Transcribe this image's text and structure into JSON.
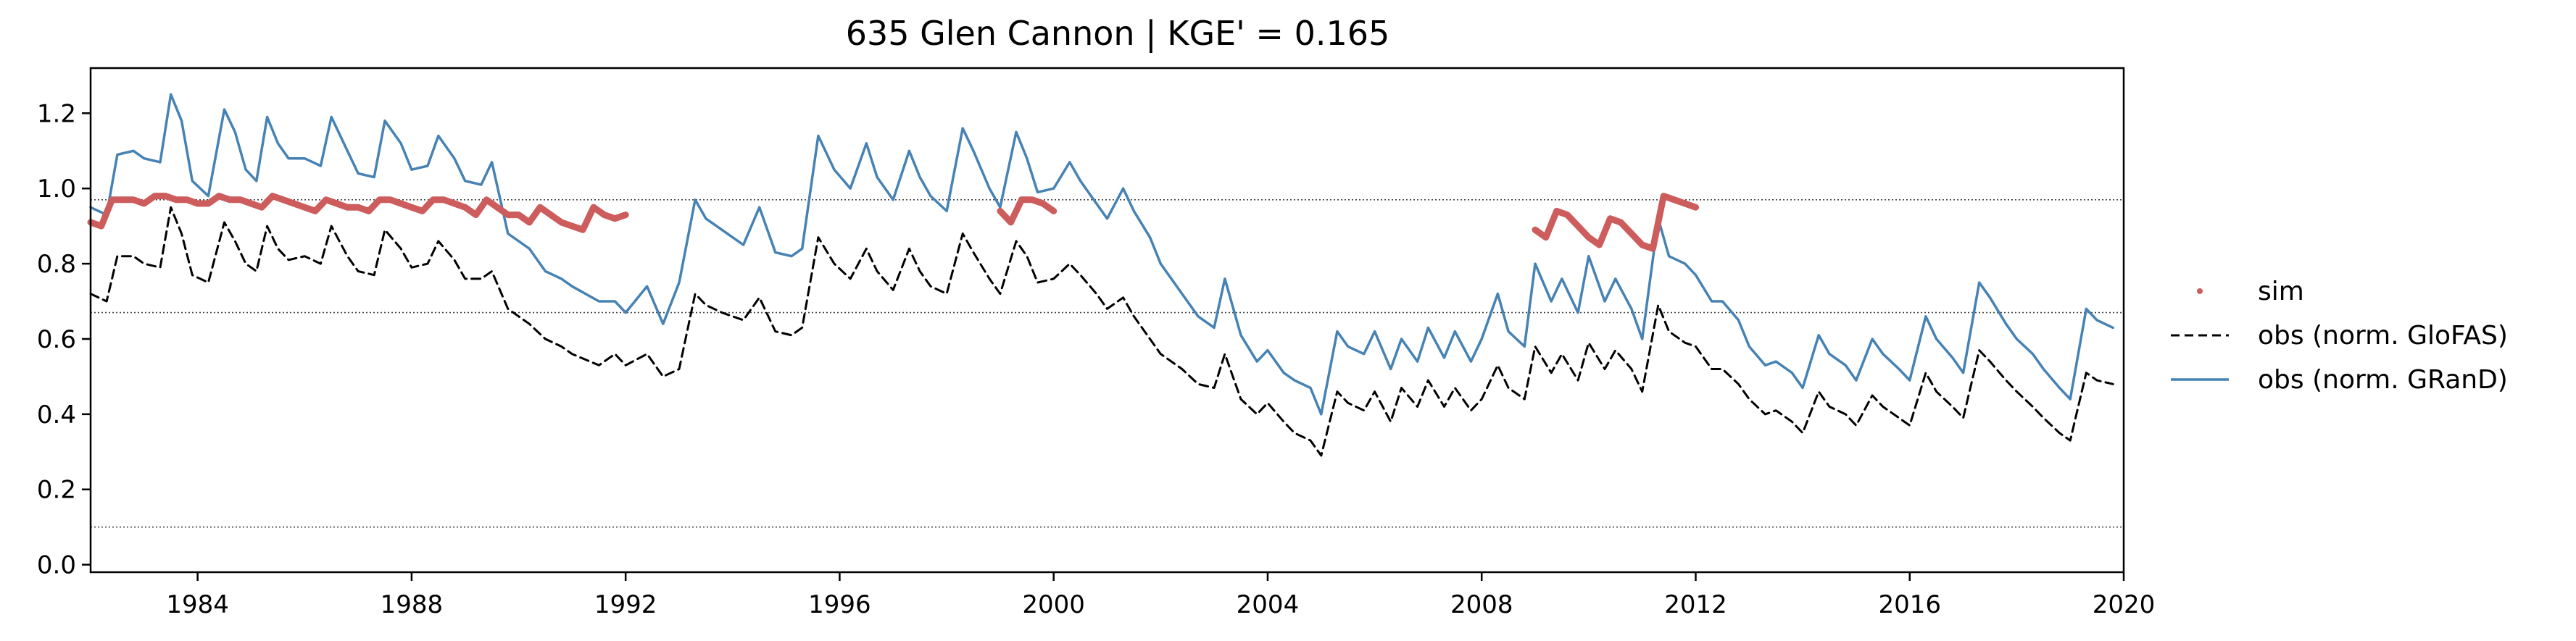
{
  "chart_data": {
    "type": "line",
    "title": "635  Glen Cannon | KGE' = 0.165",
    "xlabel": "",
    "ylabel": "",
    "xlim": [
      1982.0,
      2020.0
    ],
    "ylim": [
      -0.02,
      1.32
    ],
    "x_ticks": [
      1984,
      1988,
      1992,
      1996,
      2000,
      2004,
      2008,
      2012,
      2016,
      2020
    ],
    "x_tick_labels": [
      "1984",
      "1988",
      "1992",
      "1996",
      "2000",
      "2004",
      "2008",
      "2012",
      "2016",
      "2020"
    ],
    "y_ticks": [
      0.0,
      0.2,
      0.4,
      0.6,
      0.8,
      1.0,
      1.2
    ],
    "y_tick_labels": [
      "0.0",
      "0.2",
      "0.4",
      "0.6",
      "0.8",
      "1.0",
      "1.2"
    ],
    "hlines": [
      0.97,
      0.67,
      0.1
    ],
    "grid": false,
    "legend_position": "right",
    "colors": {
      "sim": "#cd5c5c",
      "glofas": "#000000",
      "grand": "#4682b4"
    },
    "legend": [
      {
        "label": "sim",
        "style": "dot",
        "color": "#cd5c5c"
      },
      {
        "label": "obs (norm. GloFAS)",
        "style": "dashed",
        "color": "#000000"
      },
      {
        "label": "obs (norm. GRanD)",
        "style": "solid",
        "color": "#4682b4"
      }
    ],
    "series": [
      {
        "name": "obs (norm. GRanD)",
        "style": "solid",
        "color": "#4682b4",
        "x": [
          1982.0,
          1982.3,
          1982.5,
          1982.8,
          1983.0,
          1983.3,
          1983.5,
          1983.7,
          1983.9,
          1984.2,
          1984.5,
          1984.7,
          1984.9,
          1985.1,
          1985.3,
          1985.5,
          1985.7,
          1986.0,
          1986.3,
          1986.5,
          1986.8,
          1987.0,
          1987.3,
          1987.5,
          1987.8,
          1988.0,
          1988.3,
          1988.5,
          1988.8,
          1989.0,
          1989.3,
          1989.5,
          1989.8,
          1990.2,
          1990.5,
          1990.8,
          1991.0,
          1991.5,
          1991.8,
          1992.0,
          1992.4,
          1992.7,
          1993.0,
          1993.3,
          1993.5,
          1993.8,
          1994.2,
          1994.5,
          1994.8,
          1995.1,
          1995.3,
          1995.6,
          1995.9,
          1996.2,
          1996.5,
          1996.7,
          1997.0,
          1997.3,
          1997.5,
          1997.7,
          1998.0,
          1998.3,
          1998.5,
          1998.8,
          1999.0,
          1999.3,
          1999.5,
          1999.7,
          2000.0,
          2000.3,
          2000.5,
          2000.8,
          2001.0,
          2001.3,
          2001.5,
          2001.8,
          2002.0,
          2002.4,
          2002.7,
          2003.0,
          2003.2,
          2003.5,
          2003.8,
          2004.0,
          2004.3,
          2004.5,
          2004.8,
          2005.0,
          2005.3,
          2005.5,
          2005.8,
          2006.0,
          2006.3,
          2006.5,
          2006.8,
          2007.0,
          2007.3,
          2007.5,
          2007.8,
          2008.0,
          2008.3,
          2008.5,
          2008.8,
          2009.0,
          2009.3,
          2009.5,
          2009.8,
          2010.0,
          2010.3,
          2010.5,
          2010.8,
          2011.0,
          2011.3,
          2011.5,
          2011.8,
          2012.0,
          2012.3,
          2012.5,
          2012.8,
          2013.0,
          2013.3,
          2013.5,
          2013.8,
          2014.0,
          2014.3,
          2014.5,
          2014.8,
          2015.0,
          2015.3,
          2015.5,
          2015.8,
          2016.0,
          2016.3,
          2016.5,
          2016.8,
          2017.0,
          2017.3,
          2017.5,
          2017.8,
          2018.0,
          2018.3,
          2018.5,
          2018.8,
          2019.0,
          2019.3,
          2019.5,
          2019.8,
          2020.0
        ],
        "y": [
          0.95,
          0.93,
          1.09,
          1.1,
          1.08,
          1.07,
          1.25,
          1.18,
          1.02,
          0.98,
          1.21,
          1.15,
          1.05,
          1.02,
          1.19,
          1.12,
          1.08,
          1.08,
          1.06,
          1.19,
          1.1,
          1.04,
          1.03,
          1.18,
          1.12,
          1.05,
          1.06,
          1.14,
          1.08,
          1.02,
          1.01,
          1.07,
          0.88,
          0.84,
          0.78,
          0.76,
          0.74,
          0.7,
          0.7,
          0.67,
          0.74,
          0.64,
          0.75,
          0.97,
          0.92,
          0.89,
          0.85,
          0.95,
          0.83,
          0.82,
          0.84,
          1.14,
          1.05,
          1.0,
          1.12,
          1.03,
          0.97,
          1.1,
          1.03,
          0.98,
          0.94,
          1.16,
          1.1,
          1.0,
          0.95,
          1.15,
          1.08,
          0.99,
          1.0,
          1.07,
          1.02,
          0.96,
          0.92,
          1.0,
          0.94,
          0.87,
          0.8,
          0.72,
          0.66,
          0.63,
          0.76,
          0.61,
          0.54,
          0.57,
          0.51,
          0.49,
          0.47,
          0.4,
          0.62,
          0.58,
          0.56,
          0.62,
          0.52,
          0.6,
          0.54,
          0.63,
          0.55,
          0.62,
          0.54,
          0.6,
          0.72,
          0.62,
          0.58,
          0.8,
          0.7,
          0.76,
          0.67,
          0.82,
          0.7,
          0.76,
          0.68,
          0.6,
          0.92,
          0.82,
          0.8,
          0.77,
          0.7,
          0.7,
          0.65,
          0.58,
          0.53,
          0.54,
          0.51,
          0.47,
          0.61,
          0.56,
          0.53,
          0.49,
          0.6,
          0.56,
          0.52,
          0.49,
          0.66,
          0.6,
          0.55,
          0.51,
          0.75,
          0.71,
          0.64,
          0.6,
          0.56,
          0.52,
          0.47,
          0.44,
          0.68,
          0.65,
          0.63,
          0.62
        ],
        "segments": [
          [
            0,
            147
          ]
        ]
      },
      {
        "name": "obs (norm. GloFAS)",
        "style": "dashed",
        "color": "#000000",
        "x": [
          1982.0,
          1982.3,
          1982.5,
          1982.8,
          1983.0,
          1983.3,
          1983.5,
          1983.7,
          1983.9,
          1984.2,
          1984.5,
          1984.7,
          1984.9,
          1985.1,
          1985.3,
          1985.5,
          1985.7,
          1986.0,
          1986.3,
          1986.5,
          1986.8,
          1987.0,
          1987.3,
          1987.5,
          1987.8,
          1988.0,
          1988.3,
          1988.5,
          1988.8,
          1989.0,
          1989.3,
          1989.5,
          1989.8,
          1990.2,
          1990.5,
          1990.8,
          1991.0,
          1991.5,
          1991.8,
          1992.0,
          1992.4,
          1992.7,
          1993.0,
          1993.3,
          1993.5,
          1993.8,
          1994.2,
          1994.5,
          1994.8,
          1995.1,
          1995.3,
          1995.6,
          1995.9,
          1996.2,
          1996.5,
          1996.7,
          1997.0,
          1997.3,
          1997.5,
          1997.7,
          1998.0,
          1998.3,
          1998.5,
          1998.8,
          1999.0,
          1999.3,
          1999.5,
          1999.7,
          2000.0,
          2000.3,
          2000.5,
          2000.8,
          2001.0,
          2001.3,
          2001.5,
          2001.8,
          2002.0,
          2002.4,
          2002.7,
          2003.0,
          2003.2,
          2003.5,
          2003.8,
          2004.0,
          2004.3,
          2004.5,
          2004.8,
          2005.0,
          2005.3,
          2005.5,
          2005.8,
          2006.0,
          2006.3,
          2006.5,
          2006.8,
          2007.0,
          2007.3,
          2007.5,
          2007.8,
          2008.0,
          2008.3,
          2008.5,
          2008.8,
          2009.0,
          2009.3,
          2009.5,
          2009.8,
          2010.0,
          2010.3,
          2010.5,
          2010.8,
          2011.0,
          2011.3,
          2011.5,
          2011.8,
          2012.0,
          2012.3,
          2012.5,
          2012.8,
          2013.0,
          2013.3,
          2013.5,
          2013.8,
          2014.0,
          2014.3,
          2014.5,
          2014.8,
          2015.0,
          2015.3,
          2015.5,
          2015.8,
          2016.0,
          2016.3,
          2016.5,
          2016.8,
          2017.0,
          2017.3,
          2017.5,
          2017.8,
          2018.0,
          2018.3,
          2018.5,
          2018.8,
          2019.0,
          2019.3,
          2019.5,
          2019.8,
          2020.0
        ],
        "y": [
          0.72,
          0.7,
          0.82,
          0.82,
          0.8,
          0.79,
          0.95,
          0.88,
          0.77,
          0.75,
          0.91,
          0.86,
          0.8,
          0.78,
          0.9,
          0.84,
          0.81,
          0.82,
          0.8,
          0.9,
          0.82,
          0.78,
          0.77,
          0.89,
          0.84,
          0.79,
          0.8,
          0.86,
          0.81,
          0.76,
          0.76,
          0.78,
          0.68,
          0.64,
          0.6,
          0.58,
          0.56,
          0.53,
          0.56,
          0.53,
          0.56,
          0.5,
          0.52,
          0.72,
          0.69,
          0.67,
          0.65,
          0.71,
          0.62,
          0.61,
          0.63,
          0.87,
          0.8,
          0.76,
          0.84,
          0.78,
          0.73,
          0.84,
          0.78,
          0.74,
          0.72,
          0.88,
          0.83,
          0.76,
          0.72,
          0.86,
          0.82,
          0.75,
          0.76,
          0.8,
          0.77,
          0.72,
          0.68,
          0.71,
          0.66,
          0.6,
          0.56,
          0.52,
          0.48,
          0.47,
          0.56,
          0.44,
          0.4,
          0.43,
          0.38,
          0.35,
          0.33,
          0.29,
          0.46,
          0.43,
          0.41,
          0.46,
          0.38,
          0.47,
          0.42,
          0.49,
          0.42,
          0.47,
          0.41,
          0.44,
          0.53,
          0.47,
          0.44,
          0.58,
          0.51,
          0.56,
          0.49,
          0.59,
          0.52,
          0.57,
          0.52,
          0.46,
          0.69,
          0.62,
          0.59,
          0.58,
          0.52,
          0.52,
          0.48,
          0.44,
          0.4,
          0.41,
          0.38,
          0.35,
          0.46,
          0.42,
          0.4,
          0.37,
          0.45,
          0.42,
          0.39,
          0.37,
          0.51,
          0.46,
          0.42,
          0.39,
          0.57,
          0.54,
          0.49,
          0.46,
          0.42,
          0.39,
          0.35,
          0.33,
          0.51,
          0.49,
          0.48,
          0.48
        ],
        "segments": [
          [
            0,
            147
          ]
        ]
      },
      {
        "name": "sim",
        "style": "dot",
        "color": "#cd5c5c",
        "x": [
          1982.0,
          1982.2,
          1982.4,
          1982.6,
          1982.8,
          1983.0,
          1983.2,
          1983.4,
          1983.6,
          1983.8,
          1984.0,
          1984.2,
          1984.4,
          1984.6,
          1984.8,
          1985.0,
          1985.2,
          1985.4,
          1985.6,
          1985.8,
          1986.0,
          1986.2,
          1986.4,
          1986.6,
          1986.8,
          1987.0,
          1987.2,
          1987.4,
          1987.6,
          1987.8,
          1988.0,
          1988.2,
          1988.4,
          1988.6,
          1988.8,
          1989.0,
          1989.2,
          1989.4,
          1989.6,
          1989.8,
          1990.0,
          1990.2,
          1990.4,
          1990.6,
          1990.8,
          1991.0,
          1991.2,
          1991.4,
          1991.6,
          1991.8,
          1992.0,
          1999.0,
          1999.2,
          1999.4,
          1999.6,
          1999.8,
          2000.0,
          2009.0,
          2009.2,
          2009.4,
          2009.6,
          2009.8,
          2010.0,
          2010.2,
          2010.4,
          2010.6,
          2010.8,
          2011.0,
          2011.2,
          2011.4,
          2011.6,
          2011.8,
          2012.0
        ],
        "y": [
          0.91,
          0.9,
          0.97,
          0.97,
          0.97,
          0.96,
          0.98,
          0.98,
          0.97,
          0.97,
          0.96,
          0.96,
          0.98,
          0.97,
          0.97,
          0.96,
          0.95,
          0.98,
          0.97,
          0.96,
          0.95,
          0.94,
          0.97,
          0.96,
          0.95,
          0.95,
          0.94,
          0.97,
          0.97,
          0.96,
          0.95,
          0.94,
          0.97,
          0.97,
          0.96,
          0.95,
          0.93,
          0.97,
          0.95,
          0.93,
          0.93,
          0.91,
          0.95,
          0.93,
          0.91,
          0.9,
          0.89,
          0.95,
          0.93,
          0.92,
          0.93,
          0.94,
          0.91,
          0.97,
          0.97,
          0.96,
          0.94,
          0.89,
          0.87,
          0.94,
          0.93,
          0.9,
          0.87,
          0.85,
          0.92,
          0.91,
          0.88,
          0.85,
          0.84,
          0.98,
          0.97,
          0.96,
          0.95
        ],
        "segments": [
          [
            0,
            51
          ],
          [
            51,
            57
          ],
          [
            57,
            73
          ]
        ]
      }
    ]
  }
}
